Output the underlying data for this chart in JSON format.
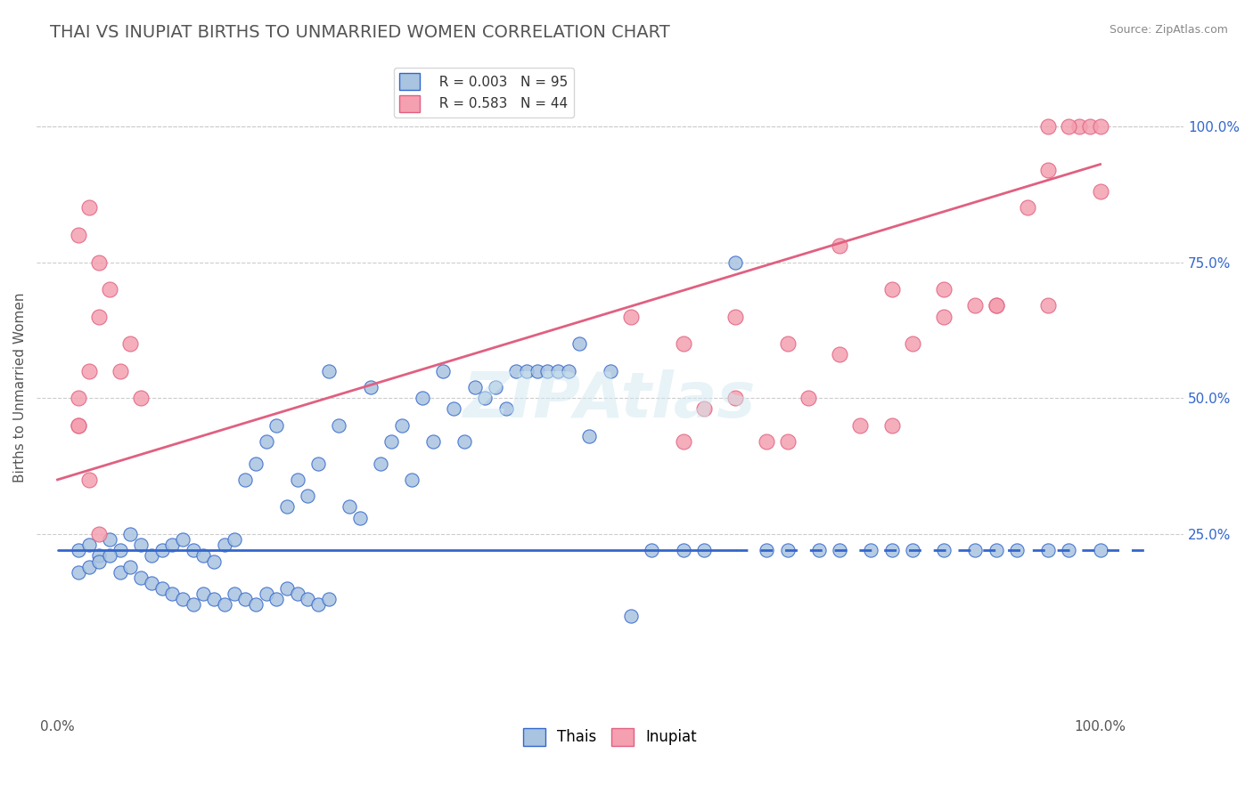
{
  "title": "THAI VS INUPIAT BIRTHS TO UNMARRIED WOMEN CORRELATION CHART",
  "source": "Source: ZipAtlas.com",
  "ylabel": "Births to Unmarried Women",
  "xlabel_ticks": [
    "0.0%",
    "100.0%"
  ],
  "ylabel_ticks": [
    "25.0%",
    "50.0%",
    "75.0%",
    "100.0%"
  ],
  "xlim": [
    0.0,
    1.0
  ],
  "ylim": [
    -0.05,
    1.1
  ],
  "thai_R": "0.003",
  "thai_N": "95",
  "inupiat_R": "0.583",
  "inupiat_N": "44",
  "thai_color": "#a8c4e0",
  "inupiat_color": "#f4a0b0",
  "thai_line_color": "#3366cc",
  "inupiat_line_color": "#e06080",
  "watermark": "ZIPAtlas",
  "thai_scatter_x": [
    0.02,
    0.03,
    0.04,
    0.05,
    0.06,
    0.07,
    0.08,
    0.09,
    0.1,
    0.11,
    0.12,
    0.13,
    0.14,
    0.15,
    0.16,
    0.17,
    0.18,
    0.19,
    0.2,
    0.21,
    0.22,
    0.23,
    0.24,
    0.25,
    0.26,
    0.27,
    0.28,
    0.29,
    0.3,
    0.31,
    0.32,
    0.33,
    0.34,
    0.35,
    0.36,
    0.37,
    0.38,
    0.39,
    0.4,
    0.41,
    0.42,
    0.43,
    0.44,
    0.45,
    0.46,
    0.47,
    0.48,
    0.49,
    0.5,
    0.51,
    0.53,
    0.55,
    0.57,
    0.6,
    0.62,
    0.65,
    0.68,
    0.7,
    0.73,
    0.75,
    0.78,
    0.8,
    0.82,
    0.85,
    0.88,
    0.9,
    0.92,
    0.95,
    0.97,
    1.0,
    0.02,
    0.03,
    0.04,
    0.05,
    0.06,
    0.07,
    0.08,
    0.09,
    0.1,
    0.11,
    0.12,
    0.13,
    0.14,
    0.15,
    0.16,
    0.17,
    0.18,
    0.19,
    0.2,
    0.21,
    0.22,
    0.23,
    0.24,
    0.25,
    0.26
  ],
  "thai_scatter_y": [
    0.22,
    0.23,
    0.21,
    0.24,
    0.22,
    0.25,
    0.23,
    0.21,
    0.22,
    0.23,
    0.24,
    0.22,
    0.21,
    0.2,
    0.23,
    0.24,
    0.35,
    0.38,
    0.42,
    0.45,
    0.3,
    0.35,
    0.32,
    0.38,
    0.55,
    0.45,
    0.3,
    0.28,
    0.52,
    0.38,
    0.42,
    0.45,
    0.35,
    0.5,
    0.42,
    0.55,
    0.48,
    0.42,
    0.52,
    0.5,
    0.52,
    0.48,
    0.55,
    0.55,
    0.55,
    0.55,
    0.55,
    0.55,
    0.6,
    0.43,
    0.55,
    0.1,
    0.22,
    0.22,
    0.22,
    0.75,
    0.22,
    0.22,
    0.22,
    0.22,
    0.22,
    0.22,
    0.22,
    0.22,
    0.22,
    0.22,
    0.22,
    0.22,
    0.22,
    0.22,
    0.18,
    0.19,
    0.2,
    0.21,
    0.18,
    0.19,
    0.17,
    0.16,
    0.15,
    0.14,
    0.13,
    0.12,
    0.14,
    0.13,
    0.12,
    0.14,
    0.13,
    0.12,
    0.14,
    0.13,
    0.15,
    0.14,
    0.13,
    0.12,
    0.13
  ],
  "inupiat_scatter_x": [
    0.02,
    0.03,
    0.04,
    0.05,
    0.06,
    0.07,
    0.08,
    0.02,
    0.03,
    0.04,
    0.02,
    0.03,
    0.04,
    0.02,
    0.55,
    0.6,
    0.65,
    0.7,
    0.75,
    0.8,
    0.85,
    0.9,
    0.95,
    1.0,
    0.95,
    0.98,
    0.99,
    1.0,
    0.97,
    0.95,
    0.93,
    0.9,
    0.88,
    0.85,
    0.82,
    0.8,
    0.77,
    0.75,
    0.72,
    0.7,
    0.68,
    0.65,
    0.62,
    0.6
  ],
  "inupiat_scatter_y": [
    0.45,
    0.55,
    0.65,
    0.7,
    0.55,
    0.6,
    0.5,
    0.8,
    0.85,
    0.75,
    0.45,
    0.35,
    0.25,
    0.5,
    0.65,
    0.6,
    0.65,
    0.6,
    0.78,
    0.7,
    0.7,
    0.67,
    0.92,
    0.88,
    1.0,
    1.0,
    1.0,
    1.0,
    1.0,
    0.67,
    0.85,
    0.67,
    0.67,
    0.65,
    0.6,
    0.45,
    0.45,
    0.58,
    0.5,
    0.42,
    0.42,
    0.5,
    0.48,
    0.42
  ]
}
